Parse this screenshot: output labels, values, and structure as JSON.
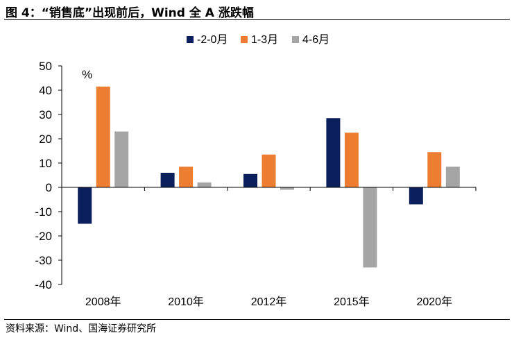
{
  "title": "图 4：“销售底”出现前后，Wind 全 A 涨跌幅",
  "source": "资料来源：Wind、国海证券研究所",
  "chart_data": {
    "type": "bar",
    "unit": "%",
    "categories": [
      "2008年",
      "2010年",
      "2012年",
      "2015年",
      "2020年"
    ],
    "series": [
      {
        "name": "-2-0月",
        "color": "#0a1f5c",
        "values": [
          -15,
          6,
          5.5,
          28.5,
          -7
        ]
      },
      {
        "name": "1-3月",
        "color": "#ed7d31",
        "values": [
          41.5,
          8.5,
          13.5,
          22.5,
          14.5
        ]
      },
      {
        "name": "4-6月",
        "color": "#a5a5a5",
        "values": [
          23,
          2,
          -1,
          -33,
          8.5
        ]
      }
    ],
    "ylim": [
      -40,
      50
    ],
    "yticks": [
      "50",
      "40",
      "30",
      "20",
      "10",
      "0",
      "-10",
      "-20",
      "-30",
      "-40"
    ],
    "ytick_values": [
      50,
      40,
      30,
      20,
      10,
      0,
      -10,
      -20,
      -30,
      -40
    ],
    "legend_position": "top-center",
    "grid": false
  }
}
